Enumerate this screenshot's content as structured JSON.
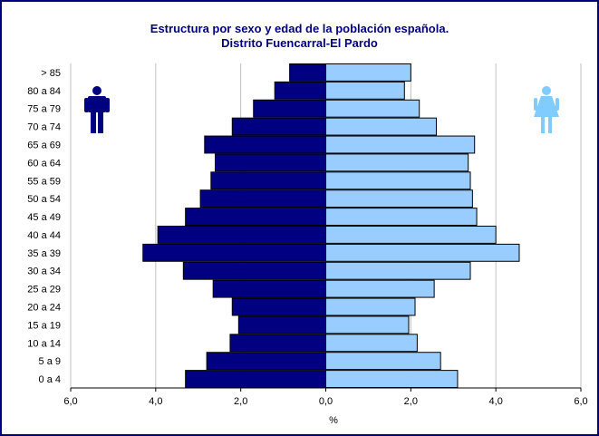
{
  "colors": {
    "male": "#000080",
    "female": "#99ccff",
    "frame": "#000080",
    "male_icon": "#000080",
    "female_icon": "#80ccff"
  },
  "icons": {
    "left": "man-icon",
    "right": "woman-icon"
  },
  "chart_data": {
    "type": "bar",
    "orientation": "horizontal",
    "title": "Estructura por sexo y edad de la población española.",
    "subtitle": "Distrito Fuencarral-El Pardo",
    "xlabel": "%",
    "ylabel": "",
    "xlim": [
      -6,
      6
    ],
    "xticks": [
      -6,
      -4,
      -2,
      0,
      2,
      4,
      6
    ],
    "xtick_labels": [
      "6,0",
      "4,0",
      "2,0",
      "0,0",
      "2,0",
      "4,0",
      "6,0"
    ],
    "grid": "vertical",
    "legend": "none",
    "categories": [
      "0 a 4",
      "5 a 9",
      "10 a 14",
      "15 a 19",
      "20 a 24",
      "25 a 29",
      "30 a 34",
      "35 a 39",
      "40 a 44",
      "45 a 49",
      "50 a 54",
      "55 a 59",
      "60 a 64",
      "65 a 69",
      "70 a 74",
      "75 a 79",
      "80 a 84",
      "> 85"
    ],
    "series": [
      {
        "values": [
          3.3,
          2.8,
          2.25,
          2.05,
          2.2,
          2.65,
          3.35,
          4.3,
          3.95,
          3.3,
          2.95,
          2.7,
          2.6,
          2.85,
          2.2,
          1.7,
          1.2,
          0.85
        ]
      },
      {
        "values": [
          3.1,
          2.7,
          2.15,
          1.95,
          2.1,
          2.55,
          3.4,
          4.55,
          4.0,
          3.55,
          3.45,
          3.4,
          3.35,
          3.5,
          2.6,
          2.2,
          1.85,
          2.0
        ]
      }
    ]
  }
}
